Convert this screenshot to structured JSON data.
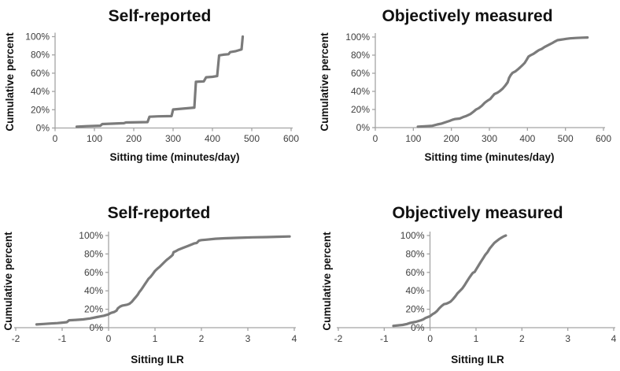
{
  "figure": {
    "background": "#ffffff",
    "curve_color": "#7b7b7b",
    "axis_color": "#a3a3a3",
    "tick_label_color": "#3e3e3e",
    "text_color": "#111111"
  },
  "chart_data": [
    {
      "id": "self-reported-sitting-time",
      "type": "line",
      "title": "Self-reported",
      "xlabel": "Sitting time (minutes/day)",
      "ylabel": "Cumulative percent",
      "xlim": [
        0,
        600
      ],
      "ylim": [
        0,
        100
      ],
      "xtick_values": [
        0,
        100,
        200,
        300,
        400,
        500,
        600
      ],
      "xtick_labels": [
        "0",
        "100",
        "200",
        "300",
        "400",
        "500",
        "600"
      ],
      "ytick_values": [
        0,
        20,
        40,
        60,
        80,
        100
      ],
      "ytick_labels": [
        "0%",
        "20%",
        "40%",
        "60%",
        "80%",
        "100%"
      ],
      "grid": false,
      "legend": false,
      "points": [
        [
          55,
          1.5
        ],
        [
          80,
          2
        ],
        [
          115,
          2.5
        ],
        [
          120,
          4.3
        ],
        [
          150,
          4.8
        ],
        [
          175,
          5.3
        ],
        [
          180,
          6
        ],
        [
          235,
          6.5
        ],
        [
          240,
          12.3
        ],
        [
          262,
          12.8
        ],
        [
          296,
          13
        ],
        [
          300,
          20.3
        ],
        [
          320,
          21
        ],
        [
          354,
          22.3
        ],
        [
          358,
          50.5
        ],
        [
          378,
          51
        ],
        [
          384,
          55.5
        ],
        [
          400,
          56
        ],
        [
          412,
          56.8
        ],
        [
          417,
          79.5
        ],
        [
          428,
          80.3
        ],
        [
          441,
          80.8
        ],
        [
          445,
          83
        ],
        [
          458,
          84
        ],
        [
          468,
          85.3
        ],
        [
          474,
          86
        ],
        [
          477,
          100
        ]
      ]
    },
    {
      "id": "objectively-measured-sitting-time",
      "type": "line",
      "title": "Objectively measured",
      "xlabel": "Sitting time (minutes/day)",
      "ylabel": "Cumulative percent",
      "xlim": [
        0,
        600
      ],
      "ylim": [
        0,
        100
      ],
      "xtick_values": [
        0,
        100,
        200,
        300,
        400,
        500,
        600
      ],
      "xtick_labels": [
        "0",
        "100",
        "200",
        "300",
        "400",
        "500",
        "600"
      ],
      "ytick_values": [
        0,
        20,
        40,
        60,
        80,
        100
      ],
      "ytick_labels": [
        "0%",
        "20%",
        "40%",
        "60%",
        "80%",
        "100%"
      ],
      "grid": false,
      "legend": false,
      "points": [
        [
          112,
          1
        ],
        [
          130,
          1.5
        ],
        [
          150,
          2
        ],
        [
          163,
          3.5
        ],
        [
          175,
          4.5
        ],
        [
          185,
          6
        ],
        [
          196,
          7.5
        ],
        [
          202,
          8.5
        ],
        [
          210,
          9.5
        ],
        [
          222,
          10
        ],
        [
          230,
          11.5
        ],
        [
          240,
          13
        ],
        [
          250,
          15
        ],
        [
          258,
          17.5
        ],
        [
          265,
          20
        ],
        [
          272,
          21.5
        ],
        [
          280,
          24
        ],
        [
          288,
          27.5
        ],
        [
          296,
          30
        ],
        [
          302,
          31.5
        ],
        [
          308,
          34.5
        ],
        [
          313,
          37
        ],
        [
          321,
          38.5
        ],
        [
          328,
          40.5
        ],
        [
          335,
          43
        ],
        [
          342,
          46.5
        ],
        [
          348,
          50
        ],
        [
          352,
          55
        ],
        [
          356,
          58
        ],
        [
          361,
          60.5
        ],
        [
          368,
          62
        ],
        [
          374,
          64
        ],
        [
          381,
          66.5
        ],
        [
          387,
          69
        ],
        [
          393,
          71.5
        ],
        [
          398,
          75
        ],
        [
          403,
          78.5
        ],
        [
          409,
          80
        ],
        [
          416,
          81.5
        ],
        [
          423,
          83.5
        ],
        [
          430,
          85.5
        ],
        [
          438,
          87
        ],
        [
          445,
          89
        ],
        [
          452,
          90.5
        ],
        [
          459,
          92
        ],
        [
          466,
          93.5
        ],
        [
          472,
          95
        ],
        [
          479,
          96.5
        ],
        [
          486,
          97
        ],
        [
          494,
          97.5
        ],
        [
          502,
          98
        ],
        [
          512,
          98.5
        ],
        [
          528,
          99
        ],
        [
          545,
          99.3
        ],
        [
          558,
          99.5
        ]
      ]
    },
    {
      "id": "self-reported-sitting-ilr",
      "type": "line",
      "title": "Self-reported",
      "xlabel": "Sitting ILR",
      "ylabel": "Cumulative percent",
      "xlim": [
        -2,
        4
      ],
      "ylim": [
        0,
        100
      ],
      "xtick_values": [
        -2,
        -1,
        0,
        1,
        2,
        3,
        4
      ],
      "xtick_labels": [
        "-2",
        "-1",
        "0",
        "1",
        "2",
        "3",
        "4"
      ],
      "ytick_values": [
        0,
        20,
        40,
        60,
        80,
        100
      ],
      "ytick_labels": [
        "0%",
        "20%",
        "40%",
        "60%",
        "80%",
        "100%"
      ],
      "grid": false,
      "legend": false,
      "points": [
        [
          -1.55,
          3.5
        ],
        [
          -1.4,
          4
        ],
        [
          -1.25,
          4.5
        ],
        [
          -1.1,
          5
        ],
        [
          -1.0,
          5.5
        ],
        [
          -0.9,
          6
        ],
        [
          -0.85,
          8
        ],
        [
          -0.7,
          8.5
        ],
        [
          -0.55,
          9
        ],
        [
          -0.4,
          10
        ],
        [
          -0.25,
          11.5
        ],
        [
          -0.1,
          13
        ],
        [
          0,
          14.5
        ],
        [
          0.05,
          16
        ],
        [
          0.12,
          17
        ],
        [
          0.17,
          18.5
        ],
        [
          0.2,
          21
        ],
        [
          0.25,
          23
        ],
        [
          0.3,
          24
        ],
        [
          0.4,
          25
        ],
        [
          0.45,
          26
        ],
        [
          0.5,
          28
        ],
        [
          0.55,
          31
        ],
        [
          0.6,
          34
        ],
        [
          0.63,
          36
        ],
        [
          0.66,
          38.5
        ],
        [
          0.7,
          41
        ],
        [
          0.74,
          44
        ],
        [
          0.78,
          47
        ],
        [
          0.82,
          50
        ],
        [
          0.86,
          53
        ],
        [
          0.9,
          55
        ],
        [
          0.95,
          58
        ],
        [
          1.0,
          61.5
        ],
        [
          1.05,
          64
        ],
        [
          1.1,
          66
        ],
        [
          1.15,
          68.5
        ],
        [
          1.2,
          71
        ],
        [
          1.25,
          73.5
        ],
        [
          1.3,
          75.5
        ],
        [
          1.35,
          77.5
        ],
        [
          1.38,
          79
        ],
        [
          1.4,
          82
        ],
        [
          1.45,
          83
        ],
        [
          1.5,
          84.5
        ],
        [
          1.6,
          86.5
        ],
        [
          1.7,
          88.5
        ],
        [
          1.8,
          90.5
        ],
        [
          1.85,
          91.5
        ],
        [
          1.9,
          92
        ],
        [
          1.95,
          94.5
        ],
        [
          2.0,
          95
        ],
        [
          2.1,
          95.5
        ],
        [
          2.3,
          96.5
        ],
        [
          2.5,
          97
        ],
        [
          2.8,
          97.5
        ],
        [
          3.1,
          98
        ],
        [
          3.4,
          98.3
        ],
        [
          3.7,
          98.7
        ],
        [
          3.9,
          99
        ]
      ]
    },
    {
      "id": "objectively-measured-sitting-ilr",
      "type": "line",
      "title": "Objectively measured",
      "xlabel": "Sitting ILR",
      "ylabel": "Cumulative percent",
      "xlim": [
        -2,
        4
      ],
      "ylim": [
        0,
        100
      ],
      "xtick_values": [
        -2,
        -1,
        0,
        1,
        2,
        3,
        4
      ],
      "xtick_labels": [
        "-2",
        "-1",
        "0",
        "1",
        "2",
        "3",
        "4"
      ],
      "ytick_values": [
        0,
        20,
        40,
        60,
        80,
        100
      ],
      "ytick_labels": [
        "0%",
        "20%",
        "40%",
        "60%",
        "80%",
        "100%"
      ],
      "grid": false,
      "legend": false,
      "points": [
        [
          -0.8,
          2
        ],
        [
          -0.7,
          2.5
        ],
        [
          -0.6,
          3
        ],
        [
          -0.5,
          4
        ],
        [
          -0.45,
          5
        ],
        [
          -0.35,
          6
        ],
        [
          -0.3,
          6.5
        ],
        [
          -0.2,
          8
        ],
        [
          -0.15,
          9
        ],
        [
          -0.1,
          10.5
        ],
        [
          -0.05,
          11.5
        ],
        [
          0,
          12.5
        ],
        [
          0.05,
          14.5
        ],
        [
          0.1,
          16
        ],
        [
          0.15,
          18
        ],
        [
          0.2,
          21
        ],
        [
          0.25,
          23.5
        ],
        [
          0.3,
          25.5
        ],
        [
          0.35,
          26
        ],
        [
          0.4,
          27
        ],
        [
          0.45,
          28.5
        ],
        [
          0.5,
          31
        ],
        [
          0.55,
          34
        ],
        [
          0.6,
          37.5
        ],
        [
          0.65,
          40
        ],
        [
          0.7,
          42.5
        ],
        [
          0.75,
          46
        ],
        [
          0.8,
          50
        ],
        [
          0.85,
          54
        ],
        [
          0.9,
          57.5
        ],
        [
          0.93,
          59.5
        ],
        [
          0.97,
          60.5
        ],
        [
          1.0,
          63
        ],
        [
          1.05,
          67
        ],
        [
          1.1,
          71
        ],
        [
          1.15,
          75
        ],
        [
          1.2,
          79
        ],
        [
          1.25,
          82
        ],
        [
          1.3,
          86
        ],
        [
          1.35,
          89
        ],
        [
          1.4,
          92
        ],
        [
          1.45,
          94
        ],
        [
          1.5,
          96
        ],
        [
          1.55,
          97.5
        ],
        [
          1.6,
          99
        ],
        [
          1.65,
          100
        ]
      ]
    }
  ]
}
